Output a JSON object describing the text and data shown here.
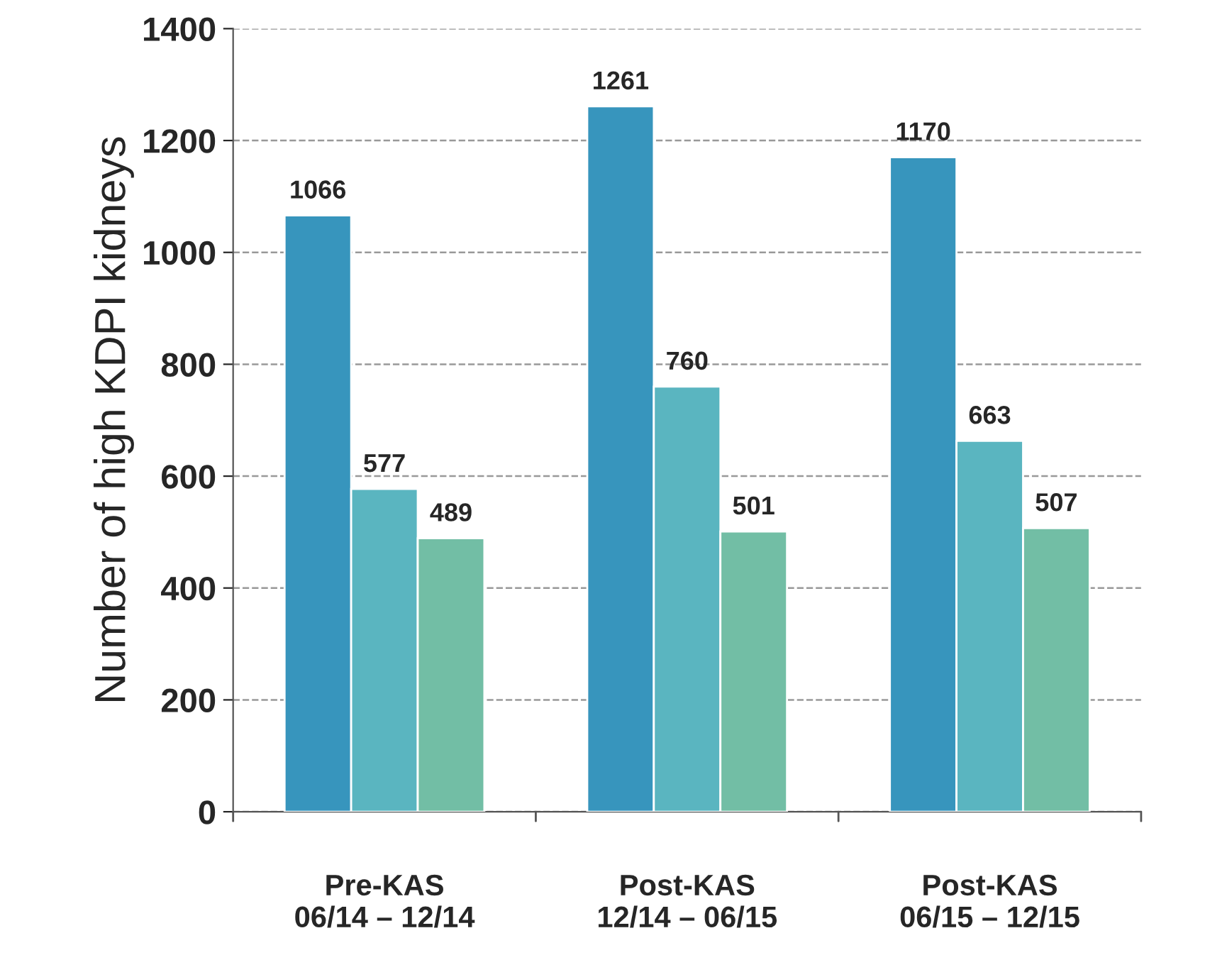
{
  "chart_data": {
    "type": "bar",
    "ylabel": "Number of high KDPI kidneys",
    "categories": [
      "Pre-KAS\n06/14 – 12/14",
      "Post-KAS\n12/14 – 06/15",
      "Post-KAS\n06/15 – 12/15"
    ],
    "series": [
      {
        "color": "#3795bd",
        "values": [
          1066,
          1261,
          1170
        ]
      },
      {
        "color": "#5ab5c0",
        "values": [
          577,
          760,
          663
        ]
      },
      {
        "color": "#72bea5",
        "values": [
          489,
          501,
          507
        ]
      }
    ],
    "ylim": [
      0,
      1400
    ],
    "yticks": [
      0,
      200,
      400,
      600,
      800,
      1000,
      1200,
      1400
    ],
    "grid": "y",
    "data_labels": true
  }
}
